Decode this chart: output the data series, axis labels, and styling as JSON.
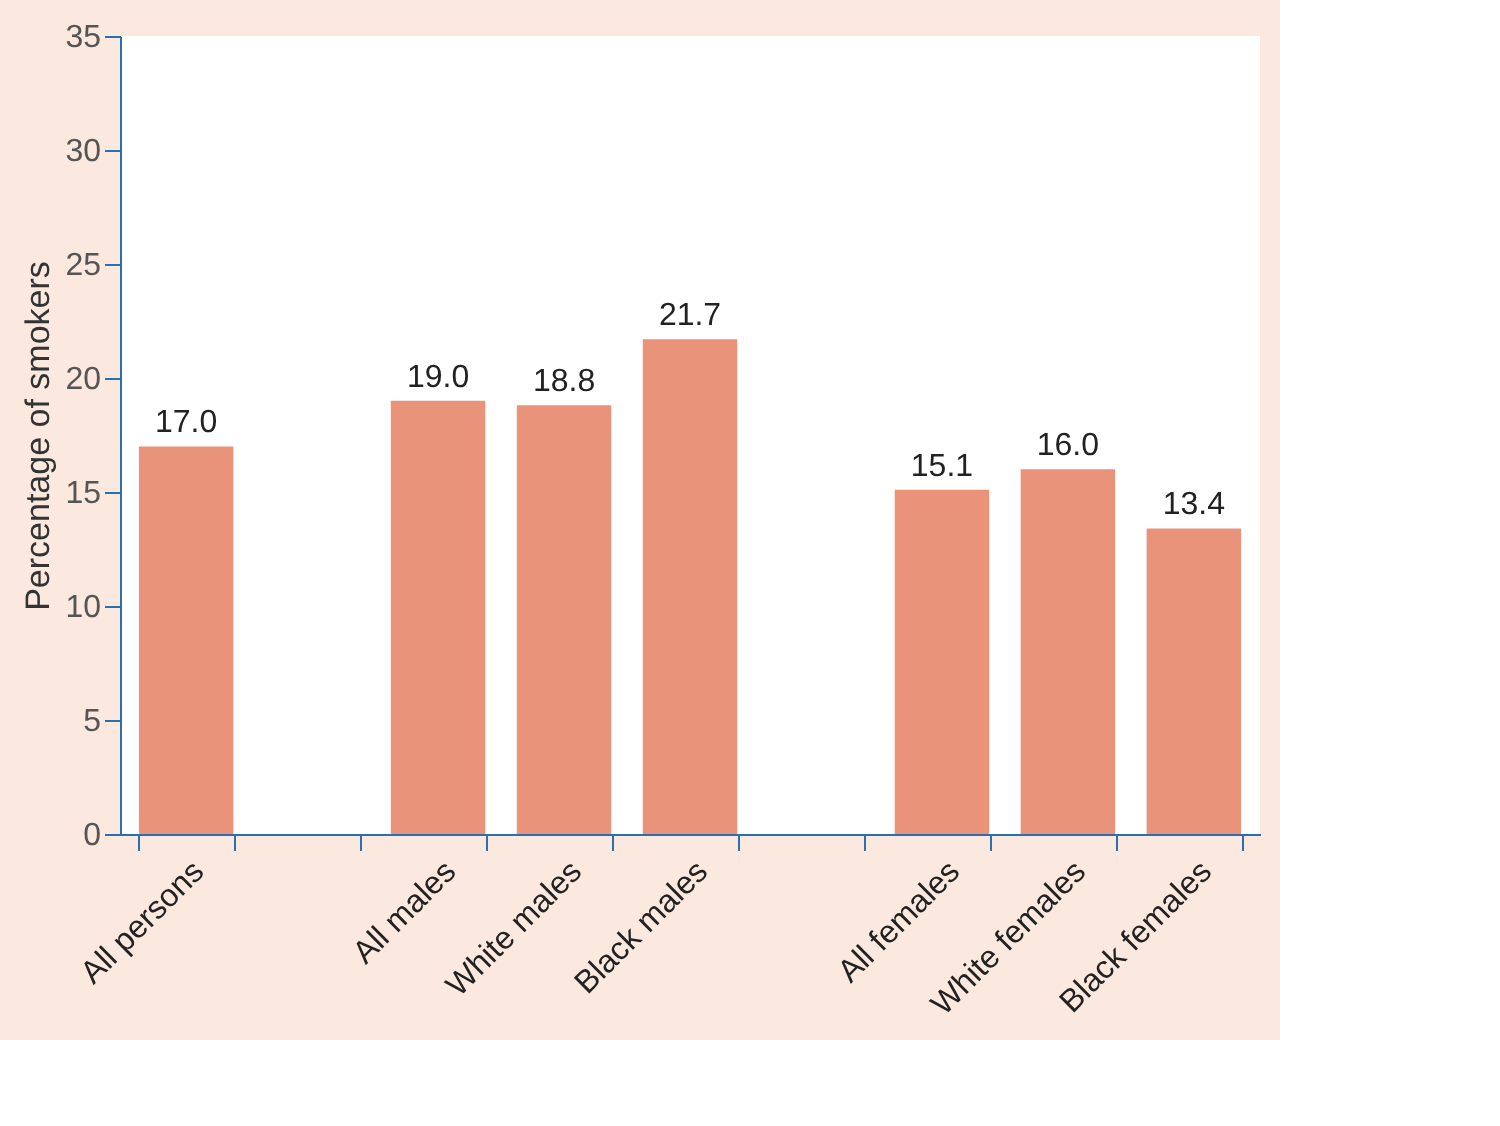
{
  "chart_data": {
    "type": "bar",
    "categories": [
      "All persons",
      null,
      "All males",
      "White males",
      "Black males",
      null,
      "All females",
      "White females",
      "Black females"
    ],
    "values": [
      17.0,
      null,
      19.0,
      18.8,
      21.7,
      null,
      15.1,
      16.0,
      13.4
    ],
    "value_labels": [
      "17.0",
      null,
      "19.0",
      "18.8",
      "21.7",
      null,
      "15.1",
      "16.0",
      "13.4"
    ],
    "color": "#e8937a",
    "ylabel": "Percentage of smokers",
    "ylim": [
      0,
      35
    ],
    "yticks": [
      0,
      5,
      10,
      15,
      20,
      25,
      30,
      35
    ],
    "grid": false
  }
}
